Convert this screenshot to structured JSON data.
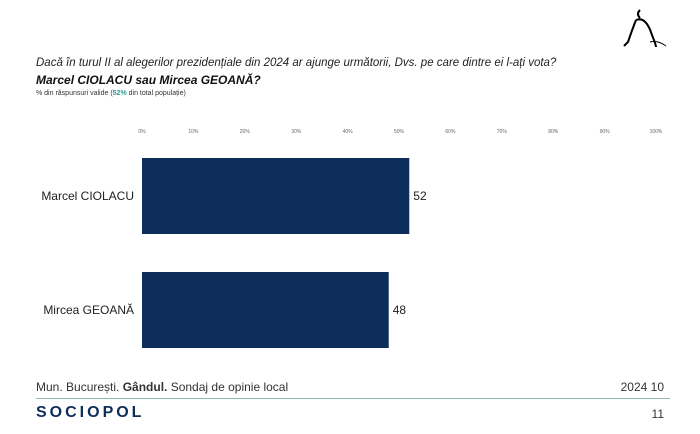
{
  "header": {
    "question": "Dacă în turul II al alegerilor prezidențiale din 2024 ar ajunge următorii, Dvs. pe care dintre ei l-ați vota?",
    "title": "Marcel CIOLACU sau Mircea GEOANĂ?",
    "subtitle_pre": "% din răspunsuri valide (",
    "subtitle_hl": "52%",
    "subtitle_post": " din total populație)"
  },
  "chart_data": {
    "type": "bar",
    "orientation": "horizontal",
    "categories": [
      "Marcel CIOLACU",
      "Mircea GEOANĂ"
    ],
    "values": [
      52,
      48
    ],
    "xlim": [
      0,
      100
    ],
    "ticks": [
      "0%",
      "10%",
      "20%",
      "30%",
      "40%",
      "50%",
      "60%",
      "70%",
      "80%",
      "90%",
      "100%"
    ],
    "bar_color": "#0d2d5a",
    "title": "Marcel CIOLACU sau Mircea GEOANĂ?"
  },
  "footer": {
    "left_pre": "Mun. București. ",
    "left_bold": "Gândul.",
    "left_post": " Sondaj de opinie local",
    "date": "2024 10",
    "brand": "SOCIOPOL",
    "page": "11"
  },
  "colors": {
    "accent": "#2a9d8f",
    "bar": "#0d2d5a"
  }
}
